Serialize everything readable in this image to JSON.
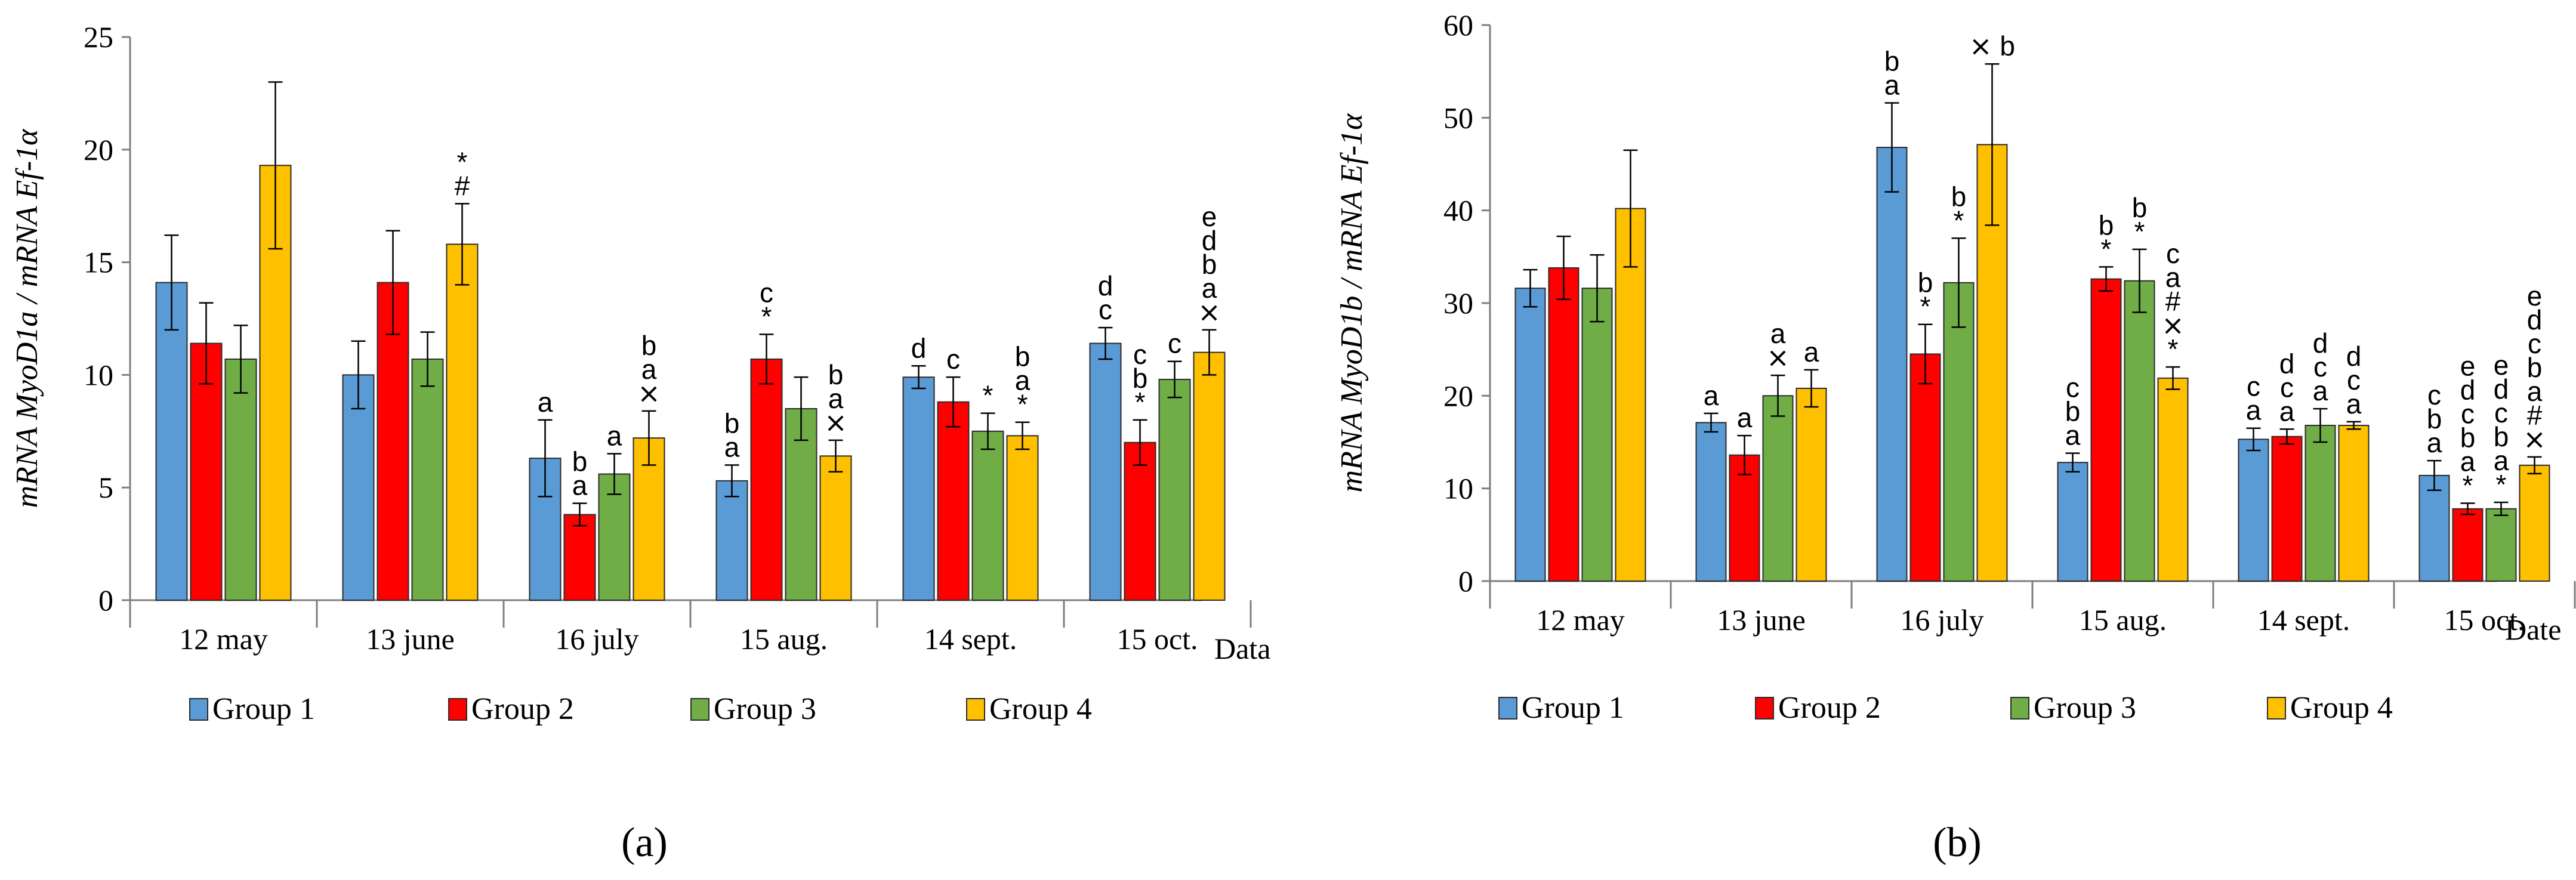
{
  "colors": {
    "Group 1": "#5b9bd5",
    "Group 2": "#ff0000",
    "Group 3": "#70ad47",
    "Group 4": "#ffc000"
  },
  "chart_data": [
    {
      "type": "bar",
      "panel_label": "(a)",
      "ylabel": "mRNA MyoD1a / mRNA Ef-1α",
      "xlabel": "Data",
      "ylim": [
        0,
        25
      ],
      "yticks": [
        0,
        5,
        10,
        15,
        20,
        25
      ],
      "categories": [
        "12 may",
        "13 june",
        "16 july",
        "15 aug.",
        "14 sept.",
        "15 oct."
      ],
      "series": [
        {
          "name": "Group 1",
          "values": [
            14.1,
            10.0,
            6.3,
            5.3,
            9.9,
            11.4
          ],
          "errors": [
            2.1,
            1.5,
            1.7,
            0.7,
            0.5,
            0.7
          ]
        },
        {
          "name": "Group 2",
          "values": [
            11.4,
            14.1,
            3.8,
            10.7,
            8.8,
            7.0
          ],
          "errors": [
            1.8,
            2.3,
            0.5,
            1.1,
            1.1,
            1.0
          ]
        },
        {
          "name": "Group 3",
          "values": [
            10.7,
            10.7,
            5.6,
            8.5,
            7.5,
            9.8
          ],
          "errors": [
            1.5,
            1.2,
            0.9,
            1.4,
            0.8,
            0.8
          ]
        },
        {
          "name": "Group 4",
          "values": [
            19.3,
            15.8,
            7.2,
            6.4,
            7.3,
            11.0
          ],
          "errors": [
            3.7,
            1.8,
            1.2,
            0.7,
            0.6,
            1.0
          ]
        }
      ],
      "annotations": [
        [
          "",
          "",
          "a",
          "b\na",
          "d",
          "d\nc"
        ],
        [
          "",
          "",
          "b\na",
          "c\n*",
          "c",
          "c\nb\n*"
        ],
        [
          "",
          "",
          "a",
          "",
          "*",
          "c"
        ],
        [
          "",
          "*\n#",
          "b\na\n⨯",
          "b\na\n⨯",
          "b\na\n*",
          "e\nd\nb\na\n⨯"
        ]
      ]
    },
    {
      "type": "bar",
      "panel_label": "(b)",
      "ylabel": "mRNA MyoD1b / mRNA Ef-1α",
      "xlabel": "Date",
      "ylim": [
        0,
        60
      ],
      "yticks": [
        0,
        10,
        20,
        30,
        40,
        50,
        60
      ],
      "categories": [
        "12 may",
        "13 june",
        "16 july",
        "15 aug.",
        "14 sept.",
        "15 oct."
      ],
      "series": [
        {
          "name": "Group 1",
          "values": [
            31.6,
            17.1,
            46.8,
            12.8,
            15.3,
            11.4
          ],
          "errors": [
            2.0,
            1.0,
            4.8,
            1.0,
            1.2,
            1.6
          ]
        },
        {
          "name": "Group 2",
          "values": [
            33.8,
            13.6,
            24.5,
            32.6,
            15.6,
            7.8
          ],
          "errors": [
            3.4,
            2.1,
            3.2,
            1.3,
            0.8,
            0.6
          ]
        },
        {
          "name": "Group 3",
          "values": [
            31.6,
            20.0,
            32.2,
            32.4,
            16.8,
            7.8
          ],
          "errors": [
            3.6,
            2.2,
            4.8,
            3.4,
            1.8,
            0.7
          ]
        },
        {
          "name": "Group 4",
          "values": [
            40.2,
            20.8,
            47.1,
            21.9,
            16.8,
            12.5
          ],
          "errors": [
            6.3,
            2.0,
            8.7,
            1.2,
            0.4,
            0.9
          ]
        }
      ],
      "annotations": [
        [
          "",
          "a",
          "b\na",
          "c\nb\na",
          "c\na",
          "c\nb\na"
        ],
        [
          "",
          "a",
          "b\n*",
          "b\n*",
          "d\nc\na",
          "e\nd\nc\nb\na\n*"
        ],
        [
          "",
          "a\n⨯",
          "b\n*",
          "b\n*",
          "d\nc\na",
          "e\nd\nc\nb\na\n*"
        ],
        [
          "",
          "a",
          "⨯ b",
          "c\na\n#\n⨯\n*",
          "d\nc\na",
          "e\nd\nc\nb\na\n#\n⨯"
        ]
      ]
    }
  ]
}
